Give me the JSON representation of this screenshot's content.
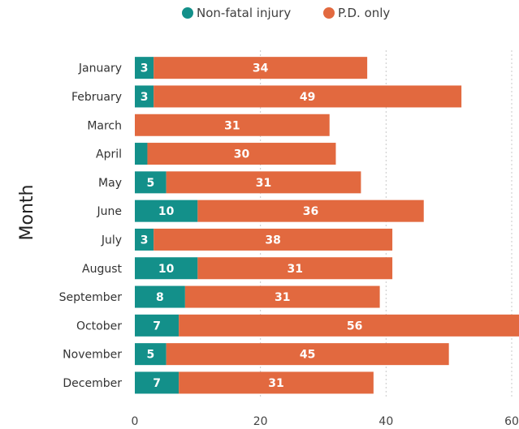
{
  "chart_data": {
    "type": "bar",
    "orientation": "horizontal",
    "stacked": true,
    "title": "",
    "xlabel": "",
    "ylabel": "Month",
    "xlim": [
      0,
      60
    ],
    "xticks": [
      0,
      20,
      40,
      60
    ],
    "grid": true,
    "legend_position": "top",
    "categories": [
      "January",
      "February",
      "March",
      "April",
      "May",
      "June",
      "July",
      "August",
      "September",
      "October",
      "November",
      "December"
    ],
    "series": [
      {
        "name": "Non-fatal injury",
        "color": "#13908a",
        "values": [
          3,
          3,
          0,
          2,
          5,
          10,
          3,
          10,
          8,
          7,
          5,
          7
        ],
        "labels": [
          "3",
          "3",
          "",
          "",
          "5",
          "10",
          "3",
          "10",
          "8",
          "7",
          "5",
          "7"
        ]
      },
      {
        "name": "P.D. only",
        "color": "#e2693f",
        "values": [
          34,
          49,
          31,
          30,
          31,
          36,
          38,
          31,
          31,
          56,
          45,
          31
        ],
        "labels": [
          "34",
          "49",
          "31",
          "30",
          "31",
          "36",
          "38",
          "31",
          "31",
          "56",
          "45",
          "31"
        ]
      }
    ]
  }
}
